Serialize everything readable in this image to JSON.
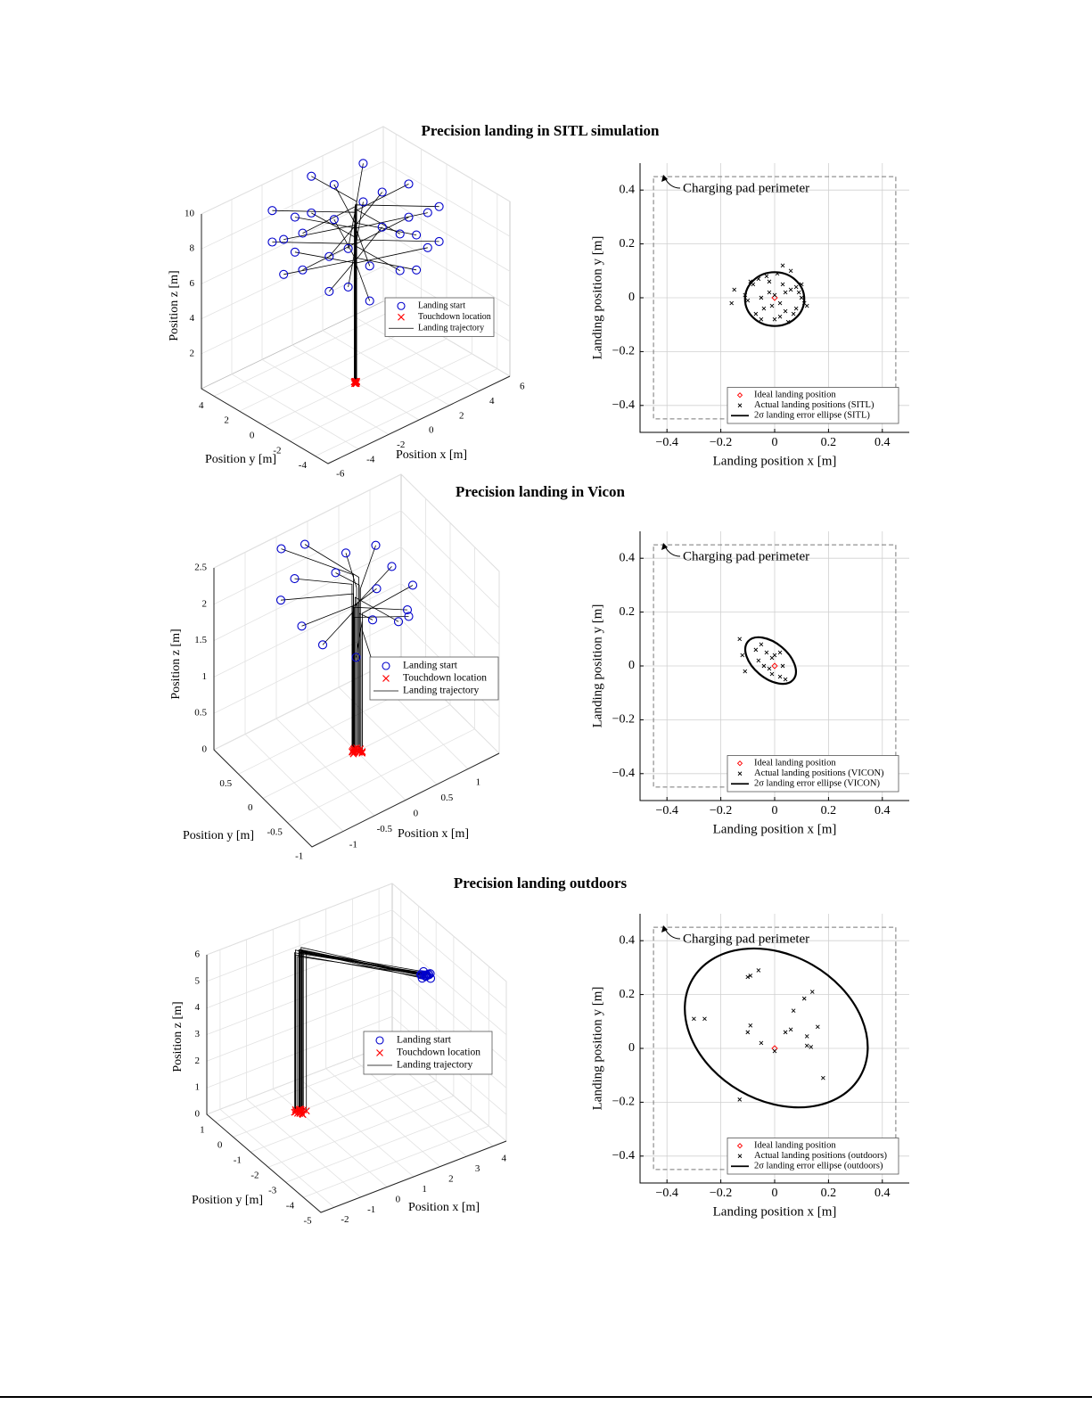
{
  "chart_data": [
    {
      "type": "scatter3d",
      "title": "Precision landing in SITL simulation",
      "xlabel": "Position x [m]",
      "ylabel": "Position y [m]",
      "zlabel": "Position z [m]",
      "xlim": [
        -6,
        6
      ],
      "ylim": [
        -5,
        5
      ],
      "zlim": [
        0,
        10
      ],
      "xticks": [
        -6,
        -4,
        -2,
        0,
        2,
        4,
        6
      ],
      "yticks": [
        -4,
        -2,
        0,
        2,
        4
      ],
      "zticks": [
        2,
        4,
        6,
        8,
        10
      ],
      "grid": true,
      "series": [
        {
          "name": "Landing start",
          "color": "#0000cc",
          "marker": "circle",
          "x": [
            -3,
            0,
            3,
            3.5,
            3,
            0,
            -3,
            -3.5,
            -2,
            1.5,
            3.5,
            3,
            1.5,
            -1.5,
            -3.5,
            -3,
            -3,
            0,
            3,
            3.5,
            3,
            0,
            -3,
            -3.5,
            -2,
            1.5,
            3.5,
            3,
            1.5,
            -1.5,
            -3.5,
            -3
          ],
          "y": [
            -3,
            -3.5,
            -3,
            0,
            3,
            3.5,
            3,
            0,
            -3.5,
            -3,
            -1.5,
            1.5,
            3.5,
            3,
            1.5,
            -1.5,
            -3,
            -3.5,
            -3,
            0,
            3,
            3.5,
            3,
            0,
            -3.5,
            -3,
            -1.5,
            1.5,
            3.5,
            3,
            1.5,
            -1.5
          ],
          "z": [
            10.2,
            10,
            10.1,
            9.9,
            10,
            10.3,
            9.8,
            10,
            9,
            9.1,
            8.9,
            9,
            9.2,
            8.8,
            9,
            9.1,
            8,
            7.9,
            8.1,
            8,
            7.8,
            8.2,
            8,
            7.9,
            7,
            7.1,
            6.9,
            7,
            7.2,
            6.8,
            7,
            7.1
          ]
        },
        {
          "name": "Touchdown location",
          "color": "#ff0000",
          "marker": "x",
          "x": [
            0.1,
            -0.1,
            0.05,
            -0.05,
            0,
            0.1,
            -0.1,
            0.05,
            0,
            0.05,
            -0.05,
            0.1,
            -0.1,
            0,
            0.05,
            -0.05,
            0.1,
            -0.1,
            0.05,
            -0.05,
            0,
            0.1,
            -0.1,
            0.05,
            0,
            0.05,
            -0.05,
            0.1,
            -0.1,
            0,
            0.05,
            -0.05
          ],
          "y": [
            0.05,
            -0.05,
            0.1,
            -0.1,
            0,
            0.05,
            -0.05,
            0.1,
            0.1,
            0,
            -0.1,
            0.05,
            -0.05,
            0.1,
            0,
            -0.1,
            0.05,
            -0.05,
            0.1,
            -0.1,
            0,
            0.05,
            -0.05,
            0.1,
            0.1,
            0,
            -0.1,
            0.05,
            -0.05,
            0.1,
            0,
            -0.1
          ],
          "z": [
            0,
            0,
            0,
            0,
            0,
            0,
            0,
            0,
            0,
            0,
            0,
            0,
            0,
            0,
            0,
            0,
            0,
            0,
            0,
            0,
            0,
            0,
            0,
            0,
            0,
            0,
            0,
            0,
            0,
            0,
            0,
            0
          ]
        },
        {
          "name": "Landing trajectory",
          "color": "#000000"
        }
      ]
    },
    {
      "type": "scatter",
      "xlabel": "Landing position x [m]",
      "ylabel": "Landing position y [m]",
      "xlim": [
        -0.5,
        0.5
      ],
      "ylim": [
        -0.5,
        0.5
      ],
      "xticks": [
        {
          "value": -0.4,
          "label": "−0.4"
        },
        {
          "value": -0.2,
          "label": "−0.2"
        },
        0,
        0.2,
        0.4
      ],
      "yticks": [
        {
          "value": -0.4,
          "label": "−0.4"
        },
        {
          "value": -0.2,
          "label": "−0.2"
        },
        0,
        0.2,
        0.4
      ],
      "grid": true,
      "legend": "lower right",
      "annotation": "Charging pad perimeter",
      "perimeter": {
        "x": [
          -0.45,
          0.45
        ],
        "y": [
          -0.45,
          0.45
        ]
      },
      "series": [
        {
          "name": "Ideal landing position",
          "color": "#ff0000",
          "marker": "diamond",
          "x": [
            0
          ],
          "y": [
            0
          ]
        },
        {
          "name": "Actual landing positions (SITL)",
          "color": "#000000",
          "marker": "x",
          "x": [
            -0.15,
            -0.16,
            0.1,
            0.12,
            0.03,
            -0.08,
            0.06,
            -0.05,
            0.02,
            -0.02,
            0.08,
            -0.1,
            0.04,
            -0.03,
            0.0,
            0.05,
            -0.06,
            0.09,
            -0.01,
            0.07,
            -0.09,
            0.11,
            0.03,
            -0.04,
            0.01,
            0.06,
            -0.07,
            0.1,
            0.02,
            -0.05,
            0.0,
            0.04,
            -0.02,
            0.08,
            -0.11
          ],
          "y": [
            0.03,
            -0.02,
            0.0,
            -0.03,
            0.12,
            0.05,
            0.1,
            -0.08,
            -0.07,
            0.02,
            0.04,
            -0.01,
            -0.05,
            0.08,
            0.01,
            -0.09,
            0.07,
            0.02,
            -0.03,
            -0.06,
            0.06,
            -0.02,
            0.05,
            -0.04,
            0.09,
            0.03,
            -0.06,
            0.05,
            -0.02,
            0.0,
            -0.08,
            0.02,
            0.06,
            -0.04,
            0.01
          ]
        },
        {
          "name": "2σ landing error ellipse (SITL)",
          "color": "#000000",
          "ellipse": {
            "cx": 0,
            "cy": -0.005,
            "rx": 0.11,
            "ry": 0.1,
            "angle": 0
          }
        }
      ]
    },
    {
      "type": "scatter3d",
      "title": "Precision landing in Vicon",
      "xlabel": "Position x [m]",
      "ylabel": "Position y [m]",
      "zlabel": "Position z [m]",
      "xlim": [
        -1.5,
        1.5
      ],
      "ylim": [
        -1,
        1
      ],
      "zlim": [
        0,
        2.5
      ],
      "xticks": [
        -1,
        -0.5,
        0,
        0.5,
        1
      ],
      "yticks": [
        -1,
        -0.5,
        0,
        0.5
      ],
      "zticks": [
        0,
        0.5,
        1,
        1.5,
        2,
        2.5
      ],
      "grid": true,
      "series": [
        {
          "name": "Landing start",
          "color": "#0000cc",
          "marker": "circle",
          "x": [
            -0.6,
            -0.2,
            0.3,
            0.8,
            0.9,
            0.6,
            -0.9,
            -0.8,
            -0.7,
            -0.4,
            0.2,
            0.5,
            -0.1,
            0.7,
            -0.5,
            0.1,
            0.4,
            -0.3
          ],
          "y": [
            0.5,
            0.8,
            0.6,
            0.3,
            0.0,
            -0.3,
            0.4,
            0.1,
            -0.2,
            -0.5,
            -0.6,
            -0.4,
            0.3,
            0.5,
            0.9,
            -0.2,
            0.1,
            -0.8
          ],
          "z": [
            2.3,
            2.4,
            2.2,
            2.0,
            1.9,
            1.8,
            2.2,
            2.0,
            1.9,
            1.8,
            2.1,
            2.0,
            2.3,
            2.2,
            2.4,
            1.9,
            2.0,
            1.7
          ]
        },
        {
          "name": "Touchdown location",
          "color": "#ff0000",
          "marker": "x",
          "x": [
            -0.05,
            0.02,
            0.04,
            -0.02,
            0.06,
            0.01,
            -0.06,
            0.03,
            -0.03,
            0.05,
            0,
            -0.04,
            0.02,
            0.07,
            -0.01,
            0.03,
            -0.05,
            0.04
          ],
          "y": [
            0.03,
            -0.02,
            0.05,
            0.01,
            -0.04,
            0.06,
            -0.01,
            0.02,
            0.04,
            -0.05,
            0.03,
            0,
            -0.03,
            0.01,
            0.05,
            -0.02,
            0.02,
            -0.06
          ],
          "z": [
            0,
            0,
            0,
            0,
            0,
            0,
            0,
            0,
            0,
            0,
            0,
            0,
            0,
            0,
            0,
            0,
            0,
            0
          ]
        },
        {
          "name": "Landing trajectory",
          "color": "#000000"
        }
      ]
    },
    {
      "type": "scatter",
      "xlabel": "Landing position x [m]",
      "ylabel": "Landing position y [m]",
      "xlim": [
        -0.5,
        0.5
      ],
      "ylim": [
        -0.5,
        0.5
      ],
      "xticks": [
        {
          "value": -0.4,
          "label": "−0.4"
        },
        {
          "value": -0.2,
          "label": "−0.2"
        },
        0,
        0.2,
        0.4
      ],
      "yticks": [
        {
          "value": -0.4,
          "label": "−0.4"
        },
        {
          "value": -0.2,
          "label": "−0.2"
        },
        0,
        0.2,
        0.4
      ],
      "grid": true,
      "legend": "lower right",
      "annotation": "Charging pad perimeter",
      "perimeter": {
        "x": [
          -0.45,
          0.45
        ],
        "y": [
          -0.45,
          0.45
        ]
      },
      "series": [
        {
          "name": "Ideal landing position",
          "color": "#ff0000",
          "marker": "diamond",
          "x": [
            0
          ],
          "y": [
            0
          ]
        },
        {
          "name": "Actual landing positions (VICON)",
          "color": "#000000",
          "marker": "x",
          "x": [
            -0.13,
            -0.12,
            -0.11,
            -0.07,
            -0.05,
            -0.03,
            -0.01,
            0,
            0.02,
            -0.04,
            -0.02,
            -0.01,
            0.03,
            0.02,
            0.04,
            -0.06
          ],
          "y": [
            0.1,
            0.04,
            -0.02,
            0.06,
            0.08,
            0.05,
            0.03,
            0.04,
            0.05,
            0,
            -0.01,
            -0.03,
            0,
            -0.04,
            -0.05,
            0.02
          ]
        },
        {
          "name": "2σ landing error ellipse (VICON)",
          "color": "#000000",
          "ellipse": {
            "cx": -0.015,
            "cy": 0.02,
            "rx": 0.11,
            "ry": 0.065,
            "angle": -40
          }
        }
      ]
    },
    {
      "type": "scatter3d",
      "title": "Precision landing outdoors",
      "xlabel": "Position x [m]",
      "ylabel": "Position y [m]",
      "zlabel": "Position z [m]",
      "xlim": [
        -2.5,
        4.5
      ],
      "ylim": [
        -5,
        1.5
      ],
      "zlim": [
        0,
        6
      ],
      "xticks": [
        -2,
        -1,
        0,
        1,
        2,
        3,
        4
      ],
      "yticks": [
        -5,
        -4,
        -3,
        -2,
        -1,
        0,
        1
      ],
      "zticks": [
        0,
        1,
        2,
        3,
        4,
        5,
        6
      ],
      "grid": true,
      "series": [
        {
          "name": "Landing start",
          "color": "#0000cc",
          "marker": "circle",
          "x": [
            2.6,
            2.5,
            2.7,
            2.55,
            2.65,
            2.45,
            2.75,
            2.6,
            2.5,
            2.7,
            2.6,
            2.55,
            2.65,
            2.4
          ],
          "y": [
            -3.3,
            -3.4,
            -3.2,
            -3.25,
            -3.35,
            -3.3,
            -3.3,
            -3.45,
            -3.2,
            -3.4,
            -3.15,
            -3.35,
            -3.25,
            -3.3
          ],
          "z": [
            6,
            6.1,
            5.9,
            6,
            6.05,
            5.95,
            6,
            6.1,
            6,
            5.9,
            6.05,
            6,
            5.95,
            6.1
          ]
        },
        {
          "name": "Touchdown location",
          "color": "#ff0000",
          "marker": "x",
          "x": [
            0,
            0.1,
            -0.1,
            0.05,
            -0.05,
            0.15,
            -0.15,
            0,
            0.1,
            -0.1,
            0.05,
            -0.05,
            0.2,
            0
          ],
          "y": [
            0,
            0.05,
            -0.05,
            0.1,
            -0.1,
            0,
            0.05,
            -0.15,
            0.1,
            0.05,
            -0.05,
            0.15,
            -0.1,
            -0.2
          ],
          "z": [
            0,
            0,
            0,
            0,
            0,
            0,
            0,
            0,
            0,
            0,
            0,
            0,
            0,
            0
          ]
        },
        {
          "name": "Landing trajectory",
          "color": "#000000"
        }
      ]
    },
    {
      "type": "scatter",
      "xlabel": "Landing position x [m]",
      "ylabel": "Landing position y [m]",
      "xlim": [
        -0.5,
        0.5
      ],
      "ylim": [
        -0.5,
        0.5
      ],
      "xticks": [
        {
          "value": -0.4,
          "label": "−0.4"
        },
        {
          "value": -0.2,
          "label": "−0.2"
        },
        0,
        0.2,
        0.4
      ],
      "yticks": [
        {
          "value": -0.4,
          "label": "−0.4"
        },
        {
          "value": -0.2,
          "label": "−0.2"
        },
        0,
        0.2,
        0.4
      ],
      "grid": true,
      "legend": "lower right",
      "annotation": "Charging pad perimeter",
      "perimeter": {
        "x": [
          -0.45,
          0.45
        ],
        "y": [
          -0.45,
          0.45
        ]
      },
      "series": [
        {
          "name": "Ideal landing position",
          "color": "#ff0000",
          "marker": "diamond",
          "x": [
            0
          ],
          "y": [
            0
          ]
        },
        {
          "name": "Actual landing positions (outdoors)",
          "color": "#000000",
          "marker": "x",
          "x": [
            -0.1,
            -0.09,
            -0.06,
            -0.3,
            -0.26,
            -0.09,
            -0.1,
            -0.05,
            0,
            -0.13,
            0.11,
            0.14,
            0.07,
            0.16,
            0.06,
            0.04,
            0.12,
            0.12,
            0.135,
            0.18
          ],
          "y": [
            0.265,
            0.27,
            0.29,
            0.11,
            0.11,
            0.085,
            0.06,
            0.02,
            -0.01,
            -0.19,
            0.185,
            0.21,
            0.14,
            0.08,
            0.07,
            0.06,
            0.045,
            0.01,
            0.005,
            -0.11
          ]
        },
        {
          "name": "2σ landing error ellipse (outdoors)",
          "color": "#000000",
          "ellipse": {
            "cx": 0.006,
            "cy": 0.076,
            "rx": 0.36,
            "ry": 0.27,
            "angle": -30
          }
        }
      ]
    }
  ]
}
